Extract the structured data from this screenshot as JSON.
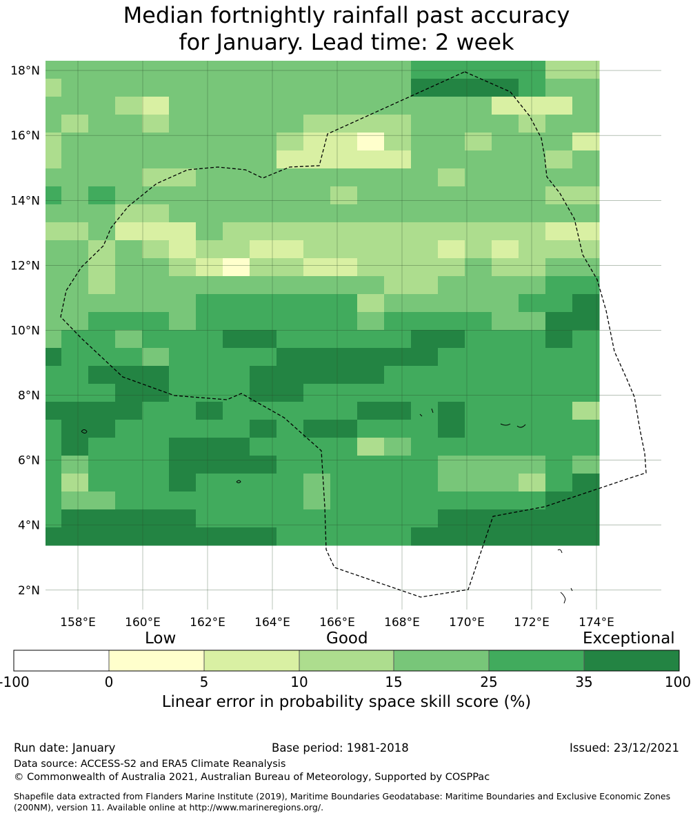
{
  "title_line1": "Median fortnightly rainfall past accuracy",
  "title_line2": "for January. Lead time: 2 week",
  "map": {
    "lon_range": [
      157.0,
      176.0
    ],
    "lat_range": [
      1.4,
      18.3
    ],
    "cell_degrees": 0.833,
    "lon_ticks": [
      "158°E",
      "160°E",
      "162°E",
      "164°E",
      "166°E",
      "168°E",
      "170°E",
      "172°E",
      "174°E"
    ],
    "lat_ticks": [
      "2°N",
      "4°N",
      "6°N",
      "8°N",
      "10°N",
      "12°N",
      "14°N",
      "16°N",
      "18°N"
    ],
    "grid_lines": true,
    "colors": [
      "#ffffff",
      "#ffffcc",
      "#d9f0a3",
      "#addd8e",
      "#78c679",
      "#41ab5d",
      "#238443"
    ],
    "eez_boundary_style": "dashed",
    "grid_rows_north_to_south": [
      "444444444444445555533",
      "344444444444446666544",
      "444324444444444442224",
      "434434444433334444344",
      "344444444322134434442",
      "344444444222224444434",
      "444433444444444344444",
      "545444444443444444433",
      "444334444444444444444",
      "334222433333333333322",
      "443432332233333232333",
      "443443213322333343344",
      "443444444444433444455",
      "444444555555344444556",
      "445554555555455554466",
      "455455566555556655565",
      "655545555666666555555",
      "556665556666655555555",
      "555665556655555555555",
      "666655655555665655553",
      "566555556566555655555",
      "565556665555345555555",
      "545556666555555444454",
      "535556555545555444356",
      "544555555545555555566",
      "566666555555555666666",
      "666666666555556666666"
    ]
  },
  "colorbar": {
    "category_labels": [
      "Low",
      "Good",
      "Exceptional"
    ],
    "tick_labels": [
      "-100",
      "0",
      "5",
      "10",
      "15",
      "25",
      "35",
      "100"
    ],
    "label": "Linear error in probability space skill score (%)"
  },
  "footer": {
    "run_date": "Run date: January",
    "base_period": "Base period: 1981-2018",
    "issued": "Issued: 23/12/2021",
    "data_source": "Data source: ACCESS-S2 and ERA5 Climate Reanalysis",
    "copyright": "© Commonwealth of Australia 2021, Australian Bureau of Meteorology, Supported by COSPPac",
    "shapefile": "Shapefile data extracted from Flanders Marine Institute (2019), Maritime Boundaries Geodatabase: Maritime Boundaries and Exclusive Economic Zones (200NM), version 11. Available online at http://www.marineregions.org/."
  }
}
